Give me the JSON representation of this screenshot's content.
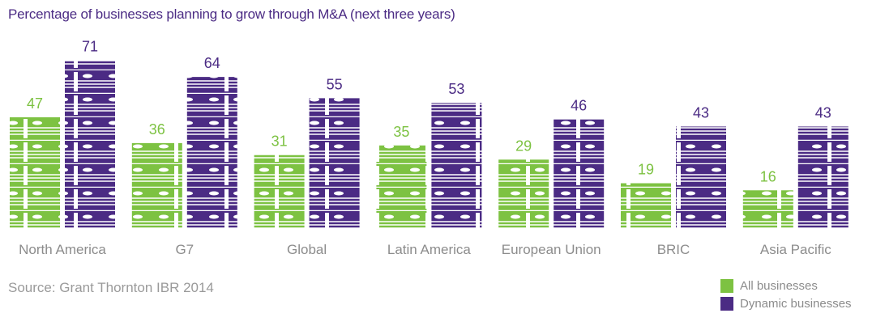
{
  "chart_data": {
    "type": "bar",
    "title": "Percentage of businesses planning to grow through M&A (next three years)",
    "categories": [
      "North America",
      "G7",
      "Global",
      "Latin America",
      "European Union",
      "BRIC",
      "Asia Pacific"
    ],
    "series": [
      {
        "name": "All businesses",
        "color": "#7dc242",
        "values": [
          47,
          36,
          31,
          35,
          29,
          19,
          16
        ]
      },
      {
        "name": "Dynamic businesses",
        "color": "#4b2b84",
        "values": [
          71,
          64,
          55,
          53,
          46,
          43,
          43
        ]
      }
    ],
    "ylim": [
      0,
      75
    ],
    "grid": false,
    "mark_style": "stacks of banknotes (pictograph)",
    "legend_position": "bottom-right",
    "source": "Source: Grant Thornton IBR 2014"
  }
}
